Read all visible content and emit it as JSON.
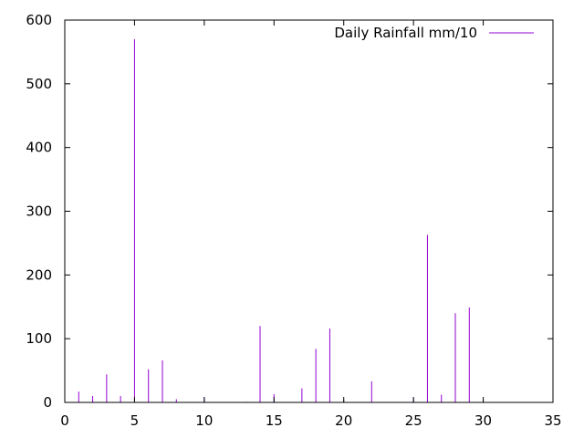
{
  "chart_data": {
    "type": "impulse",
    "legend": [
      {
        "label": "Daily Rainfall mm/10",
        "color": "#9400d3"
      }
    ],
    "legend_position": "top-right",
    "grid": false,
    "xlim": [
      0,
      35
    ],
    "ylim": [
      0,
      600
    ],
    "xticks": [
      0,
      5,
      10,
      15,
      20,
      25,
      30,
      35
    ],
    "yticks": [
      0,
      100,
      200,
      300,
      400,
      500,
      600
    ],
    "series": [
      {
        "name": "Daily Rainfall mm/10",
        "color": "#9400d3",
        "points": [
          {
            "x": 1,
            "y": 17
          },
          {
            "x": 2,
            "y": 10
          },
          {
            "x": 3,
            "y": 44
          },
          {
            "x": 4,
            "y": 10
          },
          {
            "x": 5,
            "y": 570
          },
          {
            "x": 6,
            "y": 52
          },
          {
            "x": 7,
            "y": 66
          },
          {
            "x": 8,
            "y": 5
          },
          {
            "x": 10,
            "y": 8
          },
          {
            "x": 13,
            "y": 1
          },
          {
            "x": 14,
            "y": 120
          },
          {
            "x": 15,
            "y": 13
          },
          {
            "x": 17,
            "y": 22
          },
          {
            "x": 18,
            "y": 84
          },
          {
            "x": 19,
            "y": 116
          },
          {
            "x": 20,
            "y": 4
          },
          {
            "x": 22,
            "y": 33
          },
          {
            "x": 25,
            "y": 7
          },
          {
            "x": 26,
            "y": 263
          },
          {
            "x": 27,
            "y": 12
          },
          {
            "x": 28,
            "y": 140
          },
          {
            "x": 29,
            "y": 149
          },
          {
            "x": 30,
            "y": 4
          }
        ]
      }
    ]
  }
}
